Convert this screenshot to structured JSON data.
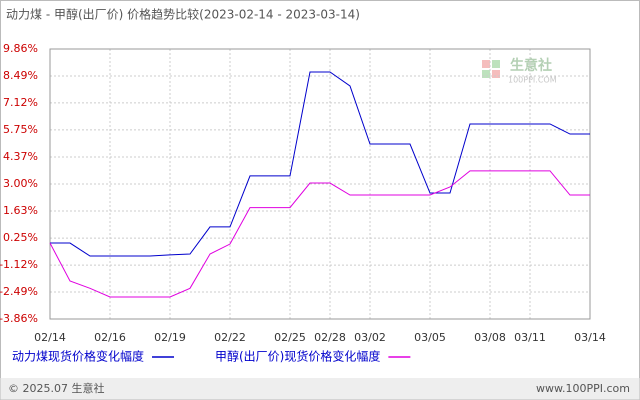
{
  "chart_data": {
    "type": "line",
    "title": "动力煤 - 甲醇(出厂价) 价格趋势比较(2023-02-14 - 2023-03-14)",
    "categories": [
      "02/14",
      null,
      null,
      "02/16",
      null,
      null,
      "02/19",
      null,
      null,
      "02/22",
      null,
      null,
      "02/25",
      null,
      "02/28",
      null,
      "03/02",
      null,
      null,
      "03/05",
      null,
      null,
      "03/08",
      null,
      "03/11",
      null,
      null,
      "03/14"
    ],
    "series": [
      {
        "name": "动力煤现货价格变化幅度",
        "color": "#0000cc",
        "values": [
          0,
          0,
          -0.66,
          -0.66,
          -0.66,
          -0.66,
          -0.6,
          -0.56,
          0.82,
          0.82,
          3.41,
          3.41,
          3.41,
          8.69,
          8.69,
          7.98,
          5.03,
          5.03,
          5.03,
          2.54,
          2.54,
          6.05,
          6.05,
          6.05,
          6.05,
          6.05,
          5.54,
          5.54
        ]
      },
      {
        "name": "甲醇(出厂价)现货价格变化幅度",
        "color": "#e000e0",
        "values": [
          0,
          -1.93,
          -2.3,
          -2.74,
          -2.74,
          -2.74,
          -2.74,
          -2.3,
          -0.56,
          -0.05,
          1.8,
          1.8,
          1.8,
          3.05,
          3.05,
          2.44,
          2.44,
          2.44,
          2.44,
          2.44,
          2.85,
          3.67,
          3.67,
          3.67,
          3.67,
          3.67,
          2.44,
          2.44
        ]
      }
    ],
    "ylim": [
      -3.86,
      9.86
    ],
    "yticks": [
      {
        "value": 9.86,
        "label": "9.86%"
      },
      {
        "value": 8.49,
        "label": "8.49%"
      },
      {
        "value": 7.12,
        "label": "7.12%"
      },
      {
        "value": 5.75,
        "label": "5.75%"
      },
      {
        "value": 4.37,
        "label": "4.37%"
      },
      {
        "value": 3.0,
        "label": "3.00%"
      },
      {
        "value": 1.63,
        "label": "1.63%"
      },
      {
        "value": 0.25,
        "label": "0.25%"
      },
      {
        "value": -1.12,
        "label": "-1.12%"
      },
      {
        "value": -2.49,
        "label": "-2.49%"
      },
      {
        "value": -3.86,
        "label": "-3.86%"
      }
    ],
    "grid": true,
    "watermark": {
      "name": "生意社",
      "site": "100PPI.COM"
    },
    "footer": {
      "copyright": "© 2025.07 生意社",
      "url": "www.100PPI.com"
    }
  }
}
